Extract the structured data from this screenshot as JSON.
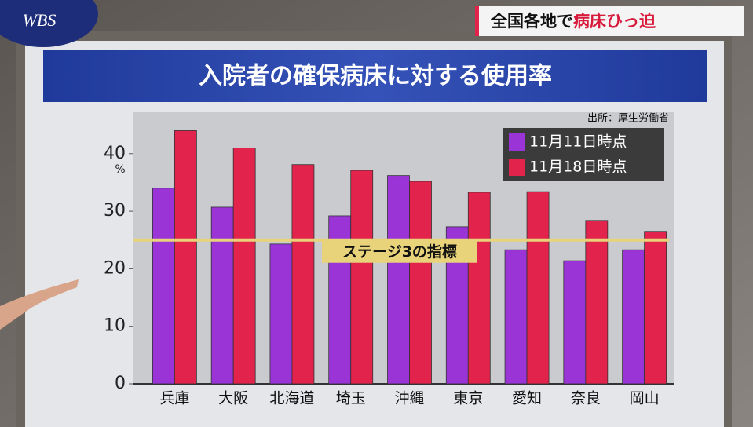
{
  "logo": "WBS",
  "headline": {
    "lead": "全国各地で",
    "emphasis": "病床ひっ迫"
  },
  "chart_data": {
    "type": "bar",
    "title": "入院者の確保病床に対する使用率",
    "source": "出所：厚生労働省",
    "y_unit": "%",
    "categories": [
      "兵庫",
      "大阪",
      "北海道",
      "埼玉",
      "沖縄",
      "東京",
      "愛知",
      "奈良",
      "岡山"
    ],
    "series": [
      {
        "name": "11月11日時点",
        "color": "#9a34d6",
        "values": [
          34.0,
          30.7,
          24.3,
          29.2,
          36.2,
          27.3,
          23.3,
          21.4,
          23.3
        ]
      },
      {
        "name": "11月18日時点",
        "color": "#e2234c",
        "values": [
          44.0,
          41.0,
          38.1,
          37.1,
          35.2,
          33.3,
          33.4,
          28.4,
          26.5
        ]
      }
    ],
    "reference_line": {
      "value": 25,
      "label": "ステージ3の指標",
      "color": "#e8d37a"
    },
    "ylim": [
      0,
      47.2
    ],
    "yticks": [
      0,
      10,
      20,
      30,
      40
    ],
    "legend": "upper right"
  }
}
